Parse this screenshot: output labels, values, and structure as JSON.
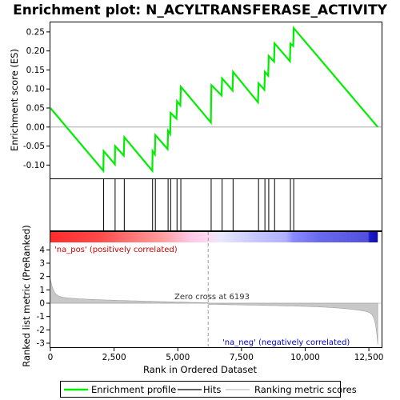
{
  "chart_data": {
    "type": "line",
    "title": "Enrichment plot: N_ACYLTRANSFERASE_ACTIVITY",
    "es_panel": {
      "ylabel": "Enrichment score (ES)",
      "ylim": [
        -0.135,
        0.275
      ],
      "yticks": [
        "0.25",
        "0.20",
        "0.15",
        "0.10",
        "0.05",
        "0.00",
        "-0.05",
        "-0.10"
      ],
      "ytick_values": [
        0.25,
        0.2,
        0.15,
        0.1,
        0.05,
        0.0,
        -0.05,
        -0.1
      ],
      "series_color": "#00ee00",
      "points": [
        [
          0,
          0.05
        ],
        [
          2080,
          -0.115
        ],
        [
          2090,
          -0.063
        ],
        [
          2530,
          -0.098
        ],
        [
          2540,
          -0.05
        ],
        [
          2880,
          -0.075
        ],
        [
          2900,
          -0.027
        ],
        [
          4000,
          -0.115
        ],
        [
          4010,
          -0.063
        ],
        [
          4100,
          -0.072
        ],
        [
          4120,
          -0.021
        ],
        [
          4600,
          -0.058
        ],
        [
          4620,
          -0.01
        ],
        [
          4700,
          -0.018
        ],
        [
          4720,
          0.037
        ],
        [
          4950,
          0.022
        ],
        [
          4970,
          0.068
        ],
        [
          5100,
          0.057
        ],
        [
          5120,
          0.106
        ],
        [
          6300,
          0.012
        ],
        [
          6310,
          0.065
        ],
        [
          6320,
          0.11
        ],
        [
          6720,
          0.083
        ],
        [
          6740,
          0.128
        ],
        [
          7150,
          0.096
        ],
        [
          7170,
          0.145
        ],
        [
          8150,
          0.065
        ],
        [
          8170,
          0.115
        ],
        [
          8400,
          0.098
        ],
        [
          8420,
          0.145
        ],
        [
          8550,
          0.135
        ],
        [
          8570,
          0.187
        ],
        [
          8780,
          0.172
        ],
        [
          8800,
          0.22
        ],
        [
          9400,
          0.173
        ],
        [
          9420,
          0.219
        ],
        [
          9530,
          0.213
        ],
        [
          9550,
          0.26
        ],
        [
          12850,
          0.0
        ]
      ]
    },
    "hits": [
      2090,
      2540,
      2900,
      4010,
      4120,
      4620,
      4720,
      4970,
      5120,
      6310,
      6740,
      7170,
      8170,
      8420,
      8570,
      8800,
      9420,
      9550
    ],
    "metric_panel": {
      "ylabel": "Ranked list metric (PreRanked)",
      "ylim": [
        -3.3,
        4.5
      ],
      "yticks": [
        "4",
        "3",
        "2",
        "1",
        "0",
        "-1",
        "-2",
        "-3"
      ],
      "ytick_values": [
        4,
        3,
        2,
        1,
        0,
        -1,
        -2,
        -3
      ],
      "zero_cross_label": "Zero cross at 6193",
      "zero_cross": 6193,
      "pos_label": "'na_pos' (positively correlated)",
      "neg_label": "'na_neg' (negatively correlated)"
    },
    "xlabel": "Rank in Ordered Dataset",
    "xlim": [
      0,
      13000
    ],
    "xticks": [
      "0",
      "2,500",
      "5,000",
      "7,500",
      "10,000",
      "12,500"
    ],
    "xtick_values": [
      0,
      2500,
      5000,
      7500,
      10000,
      12500
    ],
    "n_genes": 12850,
    "legend": {
      "items": [
        {
          "label": "Enrichment profile",
          "color": "#00ee00"
        },
        {
          "label": "Hits",
          "color": "#000000"
        },
        {
          "label": "Ranking metric scores",
          "color": "#c0c0c0"
        }
      ]
    },
    "colors": {
      "pos_text": "#cc0000",
      "neg_text": "#0000cc"
    }
  }
}
